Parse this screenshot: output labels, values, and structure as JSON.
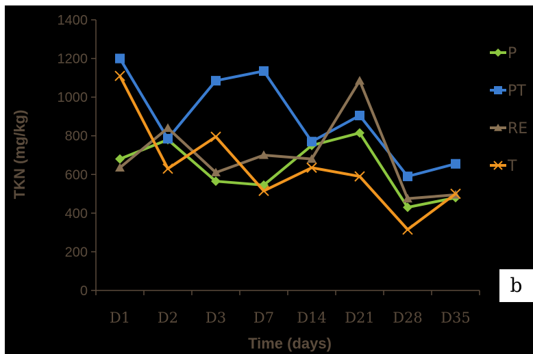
{
  "panel_label": "b",
  "colors": {
    "background": "#000000",
    "text": "#5a4b3c",
    "axis": "#5a4b3c"
  },
  "chart_data": {
    "type": "line",
    "title": "",
    "xlabel": "Time (days)",
    "ylabel": "TKN (mg/kg)",
    "ylim": [
      0,
      1400
    ],
    "yticks": [
      0,
      200,
      400,
      600,
      800,
      1000,
      1200,
      1400
    ],
    "grid": false,
    "legend_position": "right",
    "categories": [
      "D1",
      "D2",
      "D3",
      "D7",
      "D14",
      "D21",
      "D28",
      "D35"
    ],
    "series": [
      {
        "name": "P",
        "color": "#8cc63f",
        "marker": "diamond",
        "values": [
          680,
          780,
          565,
          545,
          750,
          815,
          430,
          480
        ]
      },
      {
        "name": "PT",
        "color": "#3a7cd0",
        "marker": "square",
        "values": [
          1200,
          785,
          1085,
          1135,
          770,
          905,
          590,
          655
        ]
      },
      {
        "name": "RE",
        "color": "#8a7254",
        "marker": "triangle",
        "values": [
          635,
          840,
          610,
          700,
          680,
          1085,
          475,
          495
        ]
      },
      {
        "name": "T",
        "color": "#f0951f",
        "marker": "x",
        "values": [
          1110,
          630,
          795,
          515,
          635,
          590,
          315,
          500
        ]
      }
    ]
  }
}
